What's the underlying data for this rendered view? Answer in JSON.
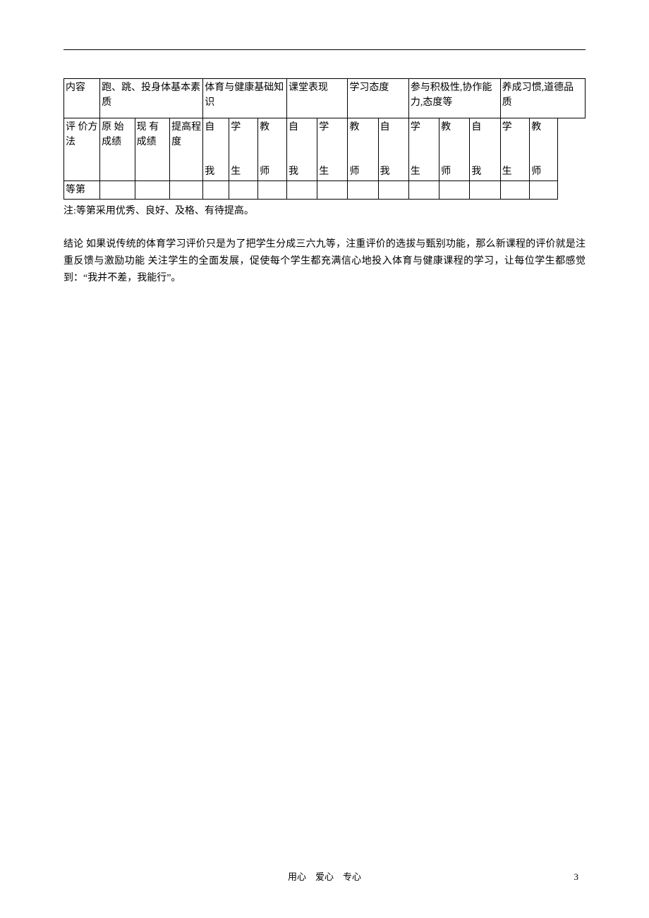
{
  "table": {
    "row1": {
      "c1": "内容",
      "c2": "跑、跳、投身体基本素质",
      "c3": "体育与健康基础知识",
      "c4": "课堂表现",
      "c5": "学习态度",
      "c6": "参与积极性,协作能力,态度等",
      "c7": "养成习惯,道德品质"
    },
    "row2": {
      "c1": "评 价方法",
      "c2": "原 始成绩",
      "c3": "现 有成绩",
      "c4": "提高程度",
      "c5_top": "自",
      "c5_bot": "我",
      "c6_top": "学",
      "c6_bot": "生",
      "c7_top": "教",
      "c7_bot": "师",
      "c8_top": "自",
      "c8_bot": "我",
      "c9_top": "学",
      "c9_bot": "生",
      "c10_top": "教",
      "c10_bot": "师",
      "c11_top": "自",
      "c11_bot": "我",
      "c12_top": "学",
      "c12_bot": "生",
      "c13_top": "教",
      "c13_bot": "师",
      "c14_top": "自",
      "c14_bot": "我",
      "c15_top": "学",
      "c15_bot": "生",
      "c16_top": "教",
      "c16_bot": "师"
    },
    "row3": {
      "c1": "等第"
    }
  },
  "note": "注:等第采用优秀、良好、及格、有待提高。",
  "conclusion": "结论 如果说传统的体育学习评价只是为了把学生分成三六九等，注重评价的选拔与甄别功能，那么新课程的评价就是注重反馈与激励功能 关注学生的全面发展，促使每个学生都充满信心地投入体育与健康课程的学习，让每位学生都感觉到：“我并不差，我能行”。",
  "footer": "用心 爱心 专心",
  "page_number": "3",
  "colors": {
    "text": "#000000",
    "background": "#ffffff",
    "border": "#000000"
  },
  "fonts": {
    "body_size": 14,
    "footer_size": 13
  }
}
